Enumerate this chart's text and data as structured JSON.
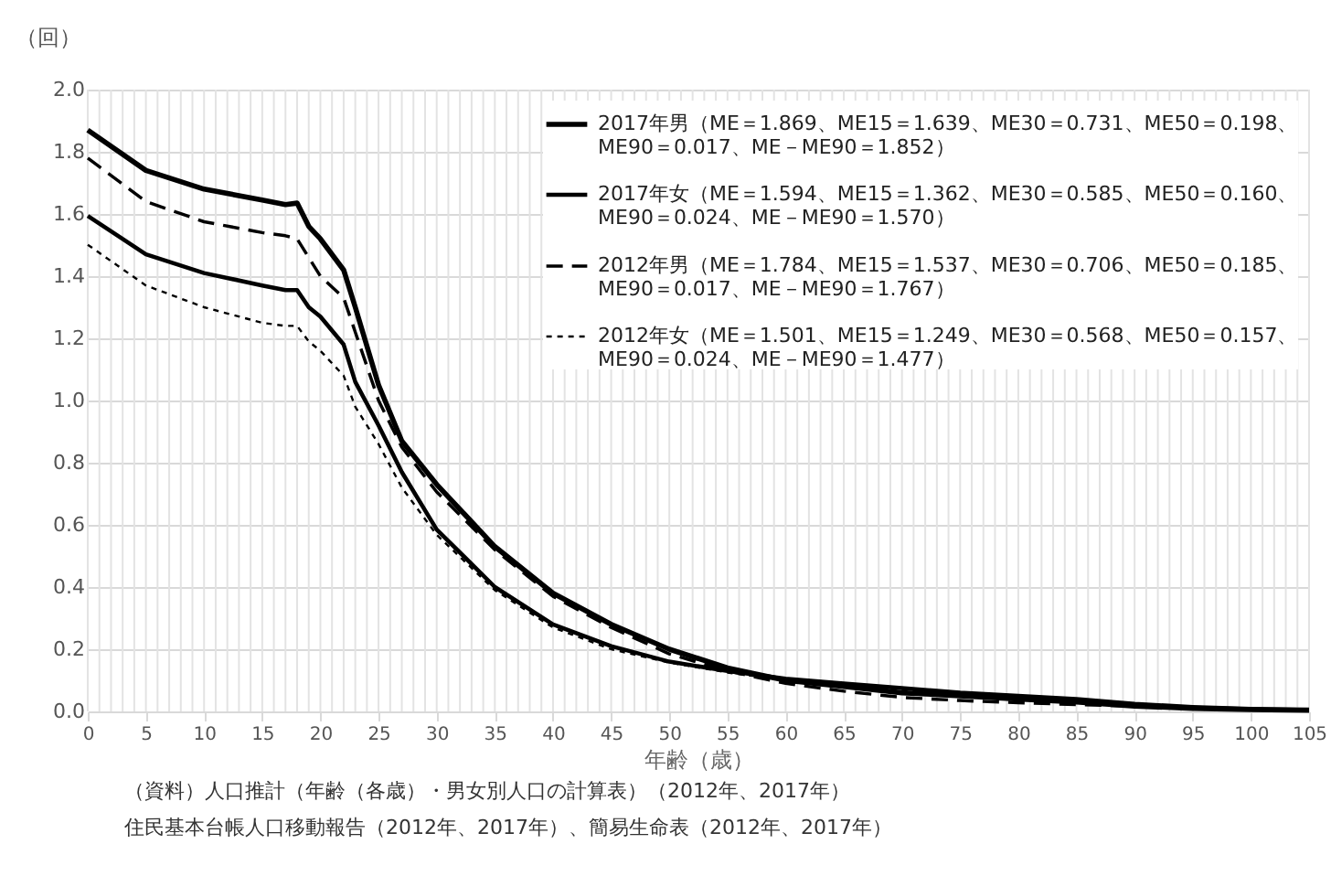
{
  "chart_data": {
    "type": "line",
    "ylabel": "（回）",
    "xlabel": "年齢（歳）",
    "x": [
      0,
      5,
      10,
      15,
      17,
      18,
      19,
      20,
      22,
      23,
      25,
      27,
      30,
      35,
      40,
      45,
      50,
      55,
      60,
      65,
      70,
      75,
      80,
      85,
      90,
      95,
      100,
      105
    ],
    "series": [
      {
        "name": "2017年男（ME＝1.869、ME15＝1.639、ME30＝0.731、ME50＝0.198、ME90＝0.017、ME－ME90＝1.852）",
        "color": "#000000",
        "line_style": "solid",
        "values": [
          1.87,
          1.74,
          1.68,
          1.645,
          1.63,
          1.635,
          1.56,
          1.52,
          1.42,
          1.3,
          1.05,
          0.87,
          0.73,
          0.53,
          0.38,
          0.28,
          0.2,
          0.14,
          0.1,
          0.08,
          0.06,
          0.05,
          0.04,
          0.03,
          0.017,
          0.01,
          0.006,
          0.004
        ]
      },
      {
        "name": "2017年女（ME＝1.594、ME15＝1.362、ME30＝0.585、ME50＝0.160、ME90＝0.024、ME－ME90＝1.570）",
        "color": "#000000",
        "line_style": "solid",
        "values": [
          1.594,
          1.47,
          1.41,
          1.37,
          1.355,
          1.355,
          1.3,
          1.27,
          1.18,
          1.06,
          0.92,
          0.77,
          0.585,
          0.4,
          0.28,
          0.21,
          0.16,
          0.13,
          0.105,
          0.09,
          0.075,
          0.06,
          0.05,
          0.04,
          0.024,
          0.014,
          0.008,
          0.004
        ]
      },
      {
        "name": "2012年男（ME＝1.784、ME15＝1.537、ME30＝0.706、ME50＝0.185、ME90＝0.017、ME－ME90＝1.767）",
        "color": "#000000",
        "line_style": "dashed",
        "values": [
          1.78,
          1.64,
          1.575,
          1.54,
          1.53,
          1.52,
          1.46,
          1.4,
          1.33,
          1.22,
          1.0,
          0.85,
          0.706,
          0.52,
          0.37,
          0.27,
          0.185,
          0.13,
          0.09,
          0.065,
          0.045,
          0.035,
          0.028,
          0.022,
          0.017,
          0.01,
          0.006,
          0.004
        ]
      },
      {
        "name": "2012年女（ME＝1.501、ME15＝1.249、ME30＝0.568、ME50＝0.157、ME90＝0.024、ME－ME90＝1.477）",
        "color": "#000000",
        "line_style": "dashed",
        "values": [
          1.501,
          1.37,
          1.3,
          1.25,
          1.24,
          1.24,
          1.19,
          1.16,
          1.08,
          0.98,
          0.86,
          0.72,
          0.568,
          0.39,
          0.27,
          0.2,
          0.157,
          0.125,
          0.1,
          0.085,
          0.07,
          0.057,
          0.047,
          0.037,
          0.024,
          0.014,
          0.008,
          0.004
        ]
      }
    ],
    "xlim": [
      0,
      105
    ],
    "xticks": [
      0,
      5,
      10,
      15,
      20,
      25,
      30,
      35,
      40,
      45,
      50,
      55,
      60,
      65,
      70,
      75,
      80,
      85,
      90,
      95,
      100,
      105
    ],
    "ylim": [
      0,
      2
    ],
    "yticks": [
      {
        "value": 0,
        "label": "0.0"
      },
      0.2,
      0.4,
      0.6,
      0.8,
      {
        "value": 1,
        "label": "1.0"
      },
      1.2,
      1.4,
      1.6,
      1.8,
      {
        "value": 2,
        "label": "2.0"
      }
    ],
    "grid": true,
    "legend": "top right",
    "marker": "none",
    "annotations": [
      "（資料）人口推計（年齢（各歳）・男女別人口の計算表）（2012年、2017年）",
      "住民基本台帳人口移動報告（2012年、2017年）、簡易生命表（2012年、2017年）"
    ]
  }
}
